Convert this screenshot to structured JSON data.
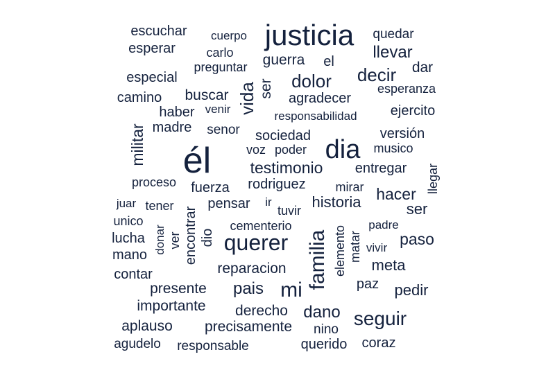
{
  "word_cloud": {
    "color": "#14213d",
    "words": [
      "escuchar",
      "cuerpo",
      "justicia",
      "quedar",
      "esperar",
      "carlo",
      "llevar",
      "preguntar",
      "guerra",
      "el",
      "dar",
      "especial",
      "decir",
      "dolor",
      "ser",
      "vida",
      "esperanza",
      "camino",
      "buscar",
      "agradecer",
      "haber",
      "venir",
      "ejercito",
      "responsabilidad",
      "madre",
      "senor",
      "militar",
      "sociedad",
      "versión",
      "él",
      "dia",
      "voz",
      "poder",
      "musico",
      "testimonio",
      "entregar",
      "llegar",
      "proceso",
      "fuerza",
      "rodriguez",
      "mirar",
      "hacer",
      "juar",
      "tener",
      "pensar",
      "ir",
      "historia",
      "ser2",
      "tuvir",
      "unico",
      "encontrar",
      "cementerio",
      "padre",
      "donar",
      "familia",
      "elemento",
      "lucha",
      "ver",
      "dio",
      "querer",
      "matar",
      "paso",
      "vivir",
      "mano",
      "meta",
      "contar",
      "reparacion",
      "pais",
      "mi",
      "paz",
      "presente",
      "pedir",
      "importante",
      "derecho",
      "dano",
      "seguir",
      "aplauso",
      "precisamente",
      "nino",
      "agudelo",
      "responsable",
      "querido",
      "coraz"
    ]
  }
}
